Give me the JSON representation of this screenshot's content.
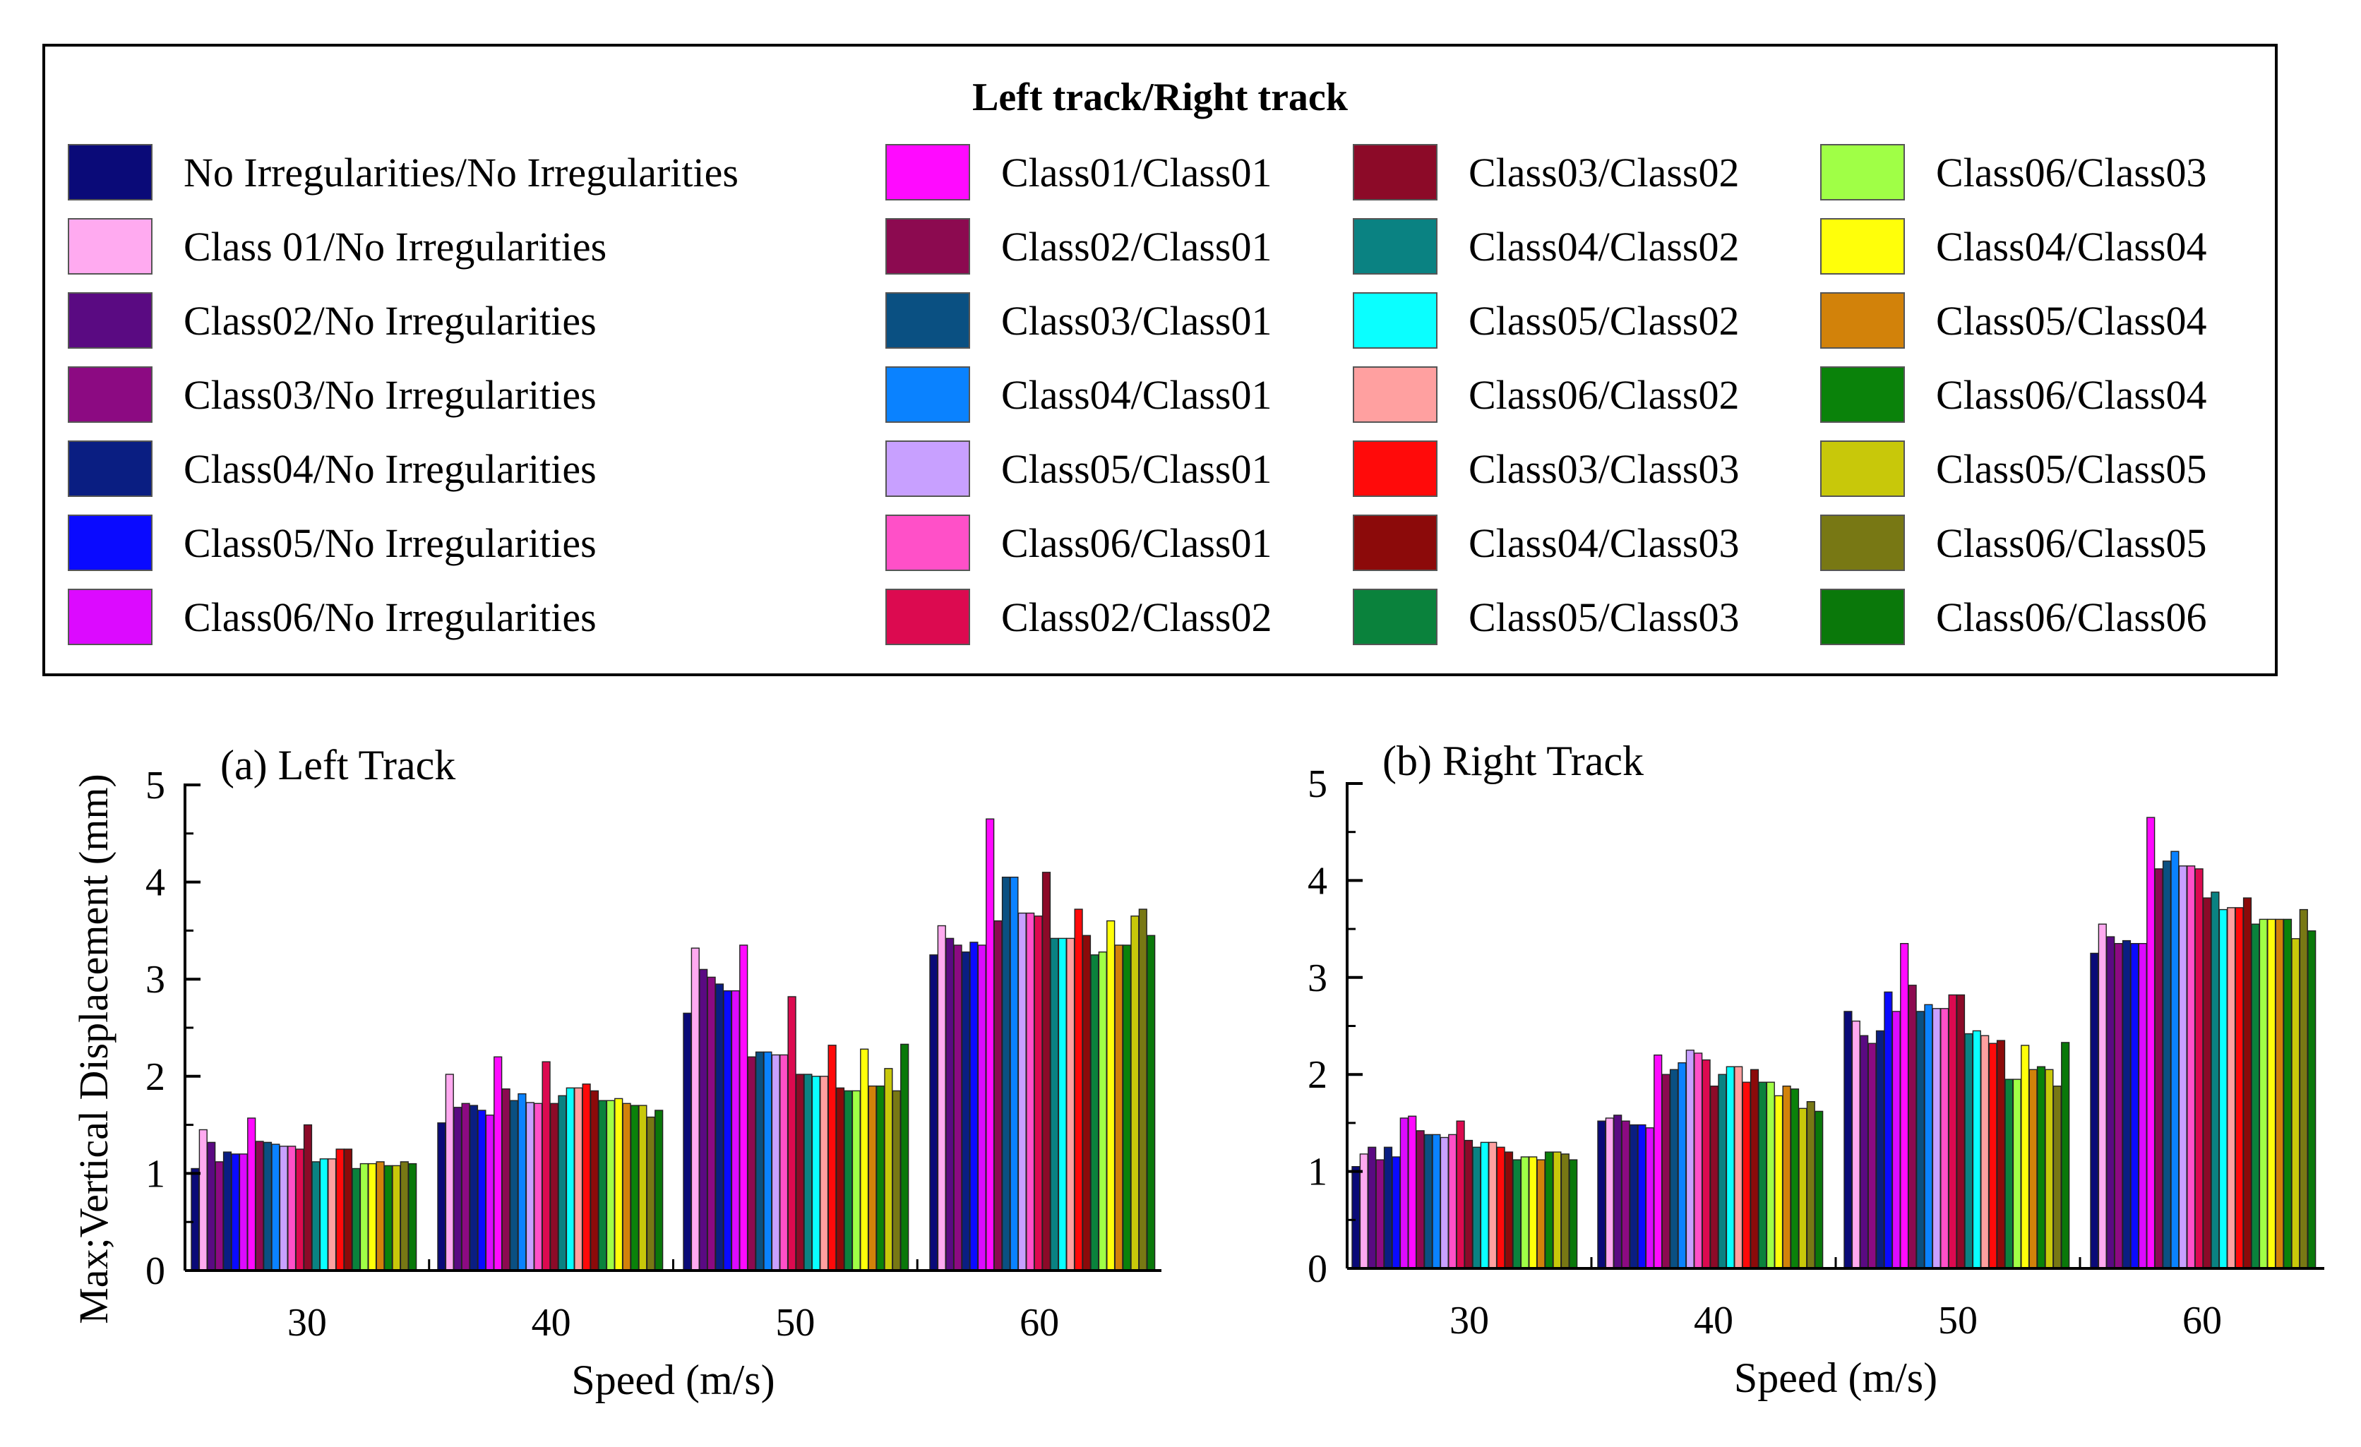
{
  "legend": {
    "title": "Left track/Right track",
    "items": [
      {
        "label": "No Irregularities/No Irregularities",
        "color": "#0a0a78"
      },
      {
        "label": "Class 01/No Irregularities",
        "color": "#ffaaf0"
      },
      {
        "label": "Class02/No Irregularities",
        "color": "#5a0a82"
      },
      {
        "label": "Class03/No Irregularities",
        "color": "#8c0a82"
      },
      {
        "label": "Class04/No Irregularities",
        "color": "#0a1e82"
      },
      {
        "label": "Class05/No Irregularities",
        "color": "#0a0aff"
      },
      {
        "label": "Class06/No Irregularities",
        "color": "#dc0aff"
      },
      {
        "label": "Class01/Class01",
        "color": "#ff0aff"
      },
      {
        "label": "Class02/Class01",
        "color": "#8c0a50"
      },
      {
        "label": "Class03/Class01",
        "color": "#0a5082"
      },
      {
        "label": "Class04/Class01",
        "color": "#0a82ff"
      },
      {
        "label": "Class05/Class01",
        "color": "#c8a0ff"
      },
      {
        "label": "Class06/Class01",
        "color": "#ff50c8"
      },
      {
        "label": "Class02/Class02",
        "color": "#dc0a50"
      },
      {
        "label": "Class03/Class02",
        "color": "#8c0a28"
      },
      {
        "label": "Class04/Class02",
        "color": "#0a8282"
      },
      {
        "label": "Class05/Class02",
        "color": "#0affff"
      },
      {
        "label": "Class06/Class02",
        "color": "#ffa0a0"
      },
      {
        "label": "Class03/Class03",
        "color": "#ff0a0a"
      },
      {
        "label": "Class04/Class03",
        "color": "#8c0a0a"
      },
      {
        "label": "Class05/Class03",
        "color": "#0a823c"
      },
      {
        "label": "Class06/Class03",
        "color": "#a0ff46"
      },
      {
        "label": "Class04/Class04",
        "color": "#ffff0a"
      },
      {
        "label": "Class05/Class04",
        "color": "#d2820a"
      },
      {
        "label": "Class06/Class04",
        "color": "#0a820a"
      },
      {
        "label": "Class05/Class05",
        "color": "#c8c80a"
      },
      {
        "label": "Class06/Class05",
        "color": "#787814"
      },
      {
        "label": "Class06/Class06",
        "color": "#0a780a"
      }
    ]
  },
  "chart_data": [
    {
      "type": "bar",
      "title": "(a) Left Track",
      "xlabel": "Speed (m/s)",
      "ylabel": "Max;Vertical Displacement (mm)",
      "categories": [
        "30",
        "40",
        "50",
        "60"
      ],
      "ylim": [
        0,
        5
      ],
      "yticks": [
        "0",
        "1",
        "2",
        "3",
        "4",
        "5"
      ],
      "series_values": [
        [
          1.05,
          1.52,
          2.65,
          3.25
        ],
        [
          1.45,
          2.02,
          3.32,
          3.55
        ],
        [
          1.32,
          1.68,
          3.1,
          3.42
        ],
        [
          1.12,
          1.72,
          3.02,
          3.35
        ],
        [
          1.22,
          1.7,
          2.95,
          3.28
        ],
        [
          1.2,
          1.65,
          2.88,
          3.38
        ],
        [
          1.2,
          1.6,
          2.88,
          3.35
        ],
        [
          1.57,
          2.2,
          3.35,
          4.65
        ],
        [
          1.33,
          1.87,
          2.2,
          3.6
        ],
        [
          1.32,
          1.75,
          2.25,
          4.05
        ],
        [
          1.3,
          1.82,
          2.25,
          4.05
        ],
        [
          1.28,
          1.73,
          2.22,
          3.68
        ],
        [
          1.28,
          1.72,
          2.22,
          3.68
        ],
        [
          1.25,
          2.15,
          2.82,
          3.65
        ],
        [
          1.5,
          1.72,
          2.02,
          4.1
        ],
        [
          1.12,
          1.8,
          2.02,
          3.42
        ],
        [
          1.15,
          1.88,
          2.0,
          3.42
        ],
        [
          1.15,
          1.88,
          2.0,
          3.42
        ],
        [
          1.25,
          1.92,
          2.32,
          3.72
        ],
        [
          1.25,
          1.85,
          1.88,
          3.45
        ],
        [
          1.05,
          1.75,
          1.85,
          3.25
        ],
        [
          1.1,
          1.75,
          1.85,
          3.28
        ],
        [
          1.1,
          1.77,
          2.28,
          3.6
        ],
        [
          1.12,
          1.72,
          1.9,
          3.35
        ],
        [
          1.08,
          1.7,
          1.9,
          3.35
        ],
        [
          1.08,
          1.7,
          2.08,
          3.65
        ],
        [
          1.12,
          1.58,
          1.85,
          3.72
        ],
        [
          1.1,
          1.65,
          2.33,
          3.45
        ]
      ]
    },
    {
      "type": "bar",
      "title": "(b) Right Track",
      "xlabel": "Speed (m/s)",
      "ylabel": "",
      "categories": [
        "30",
        "40",
        "50",
        "60"
      ],
      "ylim": [
        0,
        5
      ],
      "yticks": [
        "0",
        "1",
        "2",
        "3",
        "4",
        "5"
      ],
      "series_values": [
        [
          1.05,
          1.52,
          2.65,
          3.25
        ],
        [
          1.18,
          1.55,
          2.55,
          3.55
        ],
        [
          1.25,
          1.58,
          2.4,
          3.42
        ],
        [
          1.12,
          1.52,
          2.32,
          3.35
        ],
        [
          1.25,
          1.48,
          2.45,
          3.38
        ],
        [
          1.15,
          1.48,
          2.85,
          3.35
        ],
        [
          1.55,
          1.45,
          2.65,
          3.35
        ],
        [
          1.57,
          2.2,
          3.35,
          4.65
        ],
        [
          1.42,
          2.0,
          2.92,
          4.12
        ],
        [
          1.38,
          2.05,
          2.65,
          4.2
        ],
        [
          1.38,
          2.12,
          2.72,
          4.3
        ],
        [
          1.35,
          2.25,
          2.68,
          4.15
        ],
        [
          1.38,
          2.22,
          2.68,
          4.15
        ],
        [
          1.52,
          2.15,
          2.82,
          4.12
        ],
        [
          1.32,
          1.88,
          2.82,
          3.82
        ],
        [
          1.25,
          2.0,
          2.42,
          3.88
        ],
        [
          1.3,
          2.08,
          2.45,
          3.7
        ],
        [
          1.3,
          2.08,
          2.4,
          3.72
        ],
        [
          1.25,
          1.92,
          2.32,
          3.72
        ],
        [
          1.2,
          2.05,
          2.35,
          3.82
        ],
        [
          1.12,
          1.92,
          1.95,
          3.55
        ],
        [
          1.15,
          1.92,
          1.95,
          3.6
        ],
        [
          1.15,
          1.78,
          2.3,
          3.6
        ],
        [
          1.12,
          1.88,
          2.05,
          3.6
        ],
        [
          1.2,
          1.85,
          2.08,
          3.6
        ],
        [
          1.2,
          1.65,
          2.05,
          3.4
        ],
        [
          1.18,
          1.72,
          1.88,
          3.7
        ],
        [
          1.12,
          1.62,
          2.33,
          3.48
        ]
      ]
    }
  ]
}
